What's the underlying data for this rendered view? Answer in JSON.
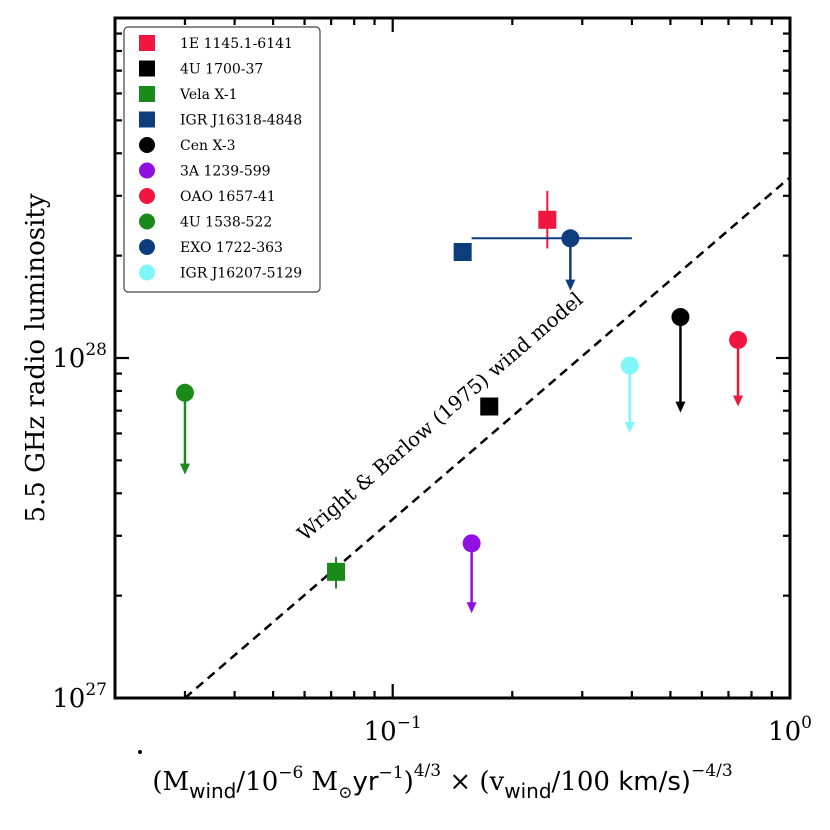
{
  "chart_data": {
    "type": "scatter",
    "xscale": "log",
    "yscale": "log",
    "xlim": [
      0.02,
      1.0
    ],
    "ylim": [
      1e+27,
      1e+29
    ],
    "grid": false,
    "legend_position": "top-left",
    "xlabel": "(Ṁwind/10−6 M⊙yr−1)4/3 × (vwind/100 km/s)−4/3",
    "ylabel": "5.5 GHz radio luminosity",
    "x_tick_labels": [
      {
        "value": 0.1,
        "base": "10",
        "exp": "−1"
      },
      {
        "value": 1.0,
        "base": "10",
        "exp": "0"
      }
    ],
    "y_tick_labels": [
      {
        "value": 1e+27,
        "base": "10",
        "exp": "27"
      },
      {
        "value": 1e+28,
        "base": "10",
        "exp": "28"
      }
    ],
    "model_line": {
      "label": "Wright & Barlow (1975) wind model",
      "x": [
        0.03,
        1.0
      ],
      "y": [
        1e+27,
        3.4e+28
      ],
      "color": "#000000",
      "style": "dashed"
    },
    "series": [
      {
        "name": "1E 1145.1-6141",
        "marker": "square",
        "color": "#f0163f",
        "x": 0.245,
        "y": 2.55e+28,
        "yerr": [
          2.1e+28,
          3.1e+28
        ],
        "upper_limit_to": null,
        "xerr": null
      },
      {
        "name": "4U 1700-37",
        "marker": "square",
        "color": "#000000",
        "x": 0.175,
        "y": 7.2e+27,
        "yerr": null,
        "upper_limit_to": null,
        "xerr": null
      },
      {
        "name": "Vela X-1",
        "marker": "square",
        "color": "#1a8a1a",
        "x": 0.072,
        "y": 2.35e+27,
        "yerr": [
          2.1e+27,
          2.6e+27
        ],
        "upper_limit_to": null,
        "xerr": null
      },
      {
        "name": "IGR J16318-4848",
        "marker": "square",
        "color": "#0e3d7e",
        "x": 0.15,
        "y": 2.05e+28,
        "yerr": null,
        "upper_limit_to": null,
        "xerr": null
      },
      {
        "name": "Cen X-3",
        "marker": "circle",
        "color": "#000000",
        "x": 0.53,
        "y": 1.32e+28,
        "yerr": null,
        "upper_limit_to": 7e+27,
        "xerr": null
      },
      {
        "name": "3A 1239-599",
        "marker": "circle",
        "color": "#8f10e0",
        "x": 0.158,
        "y": 2.85e+27,
        "yerr": null,
        "upper_limit_to": 1.8e+27,
        "xerr": null
      },
      {
        "name": "OAO 1657-41",
        "marker": "circle",
        "color": "#f0163f",
        "x": 0.74,
        "y": 1.13e+28,
        "yerr": null,
        "upper_limit_to": 7.3e+27,
        "xerr": null
      },
      {
        "name": "4U 1538-522",
        "marker": "circle",
        "color": "#1a8a1a",
        "x": 0.03,
        "y": 7.9e+27,
        "yerr": null,
        "upper_limit_to": 4.6e+27,
        "xerr": null
      },
      {
        "name": "EXO 1722-363",
        "marker": "circle",
        "color": "#0e3d7e",
        "x": 0.28,
        "y": 2.25e+28,
        "yerr": null,
        "upper_limit_to": 1.6e+28,
        "xerr": [
          0.158,
          0.4
        ]
      },
      {
        "name": "IGR J16207-5129",
        "marker": "circle",
        "color": "#7ef7f7",
        "x": 0.395,
        "y": 9.5e+27,
        "yerr": null,
        "upper_limit_to": 6.1e+27,
        "xerr": null
      }
    ]
  }
}
